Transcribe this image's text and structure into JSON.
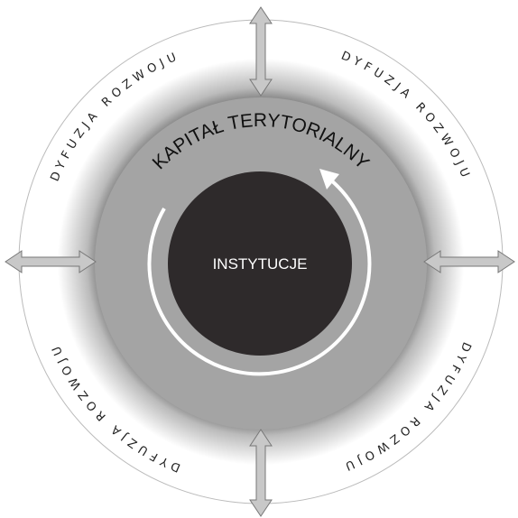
{
  "title": "KAPITAŁ TERYTORIALNY",
  "center": "INSTYTUCJE",
  "diffusion_labels": [
    "DYFUZJA ROZWOJU",
    "DYFUZJA ROZWOJU",
    "DYFUZJA ROZWOJU",
    "DYFUZJA ROZWOJU"
  ]
}
